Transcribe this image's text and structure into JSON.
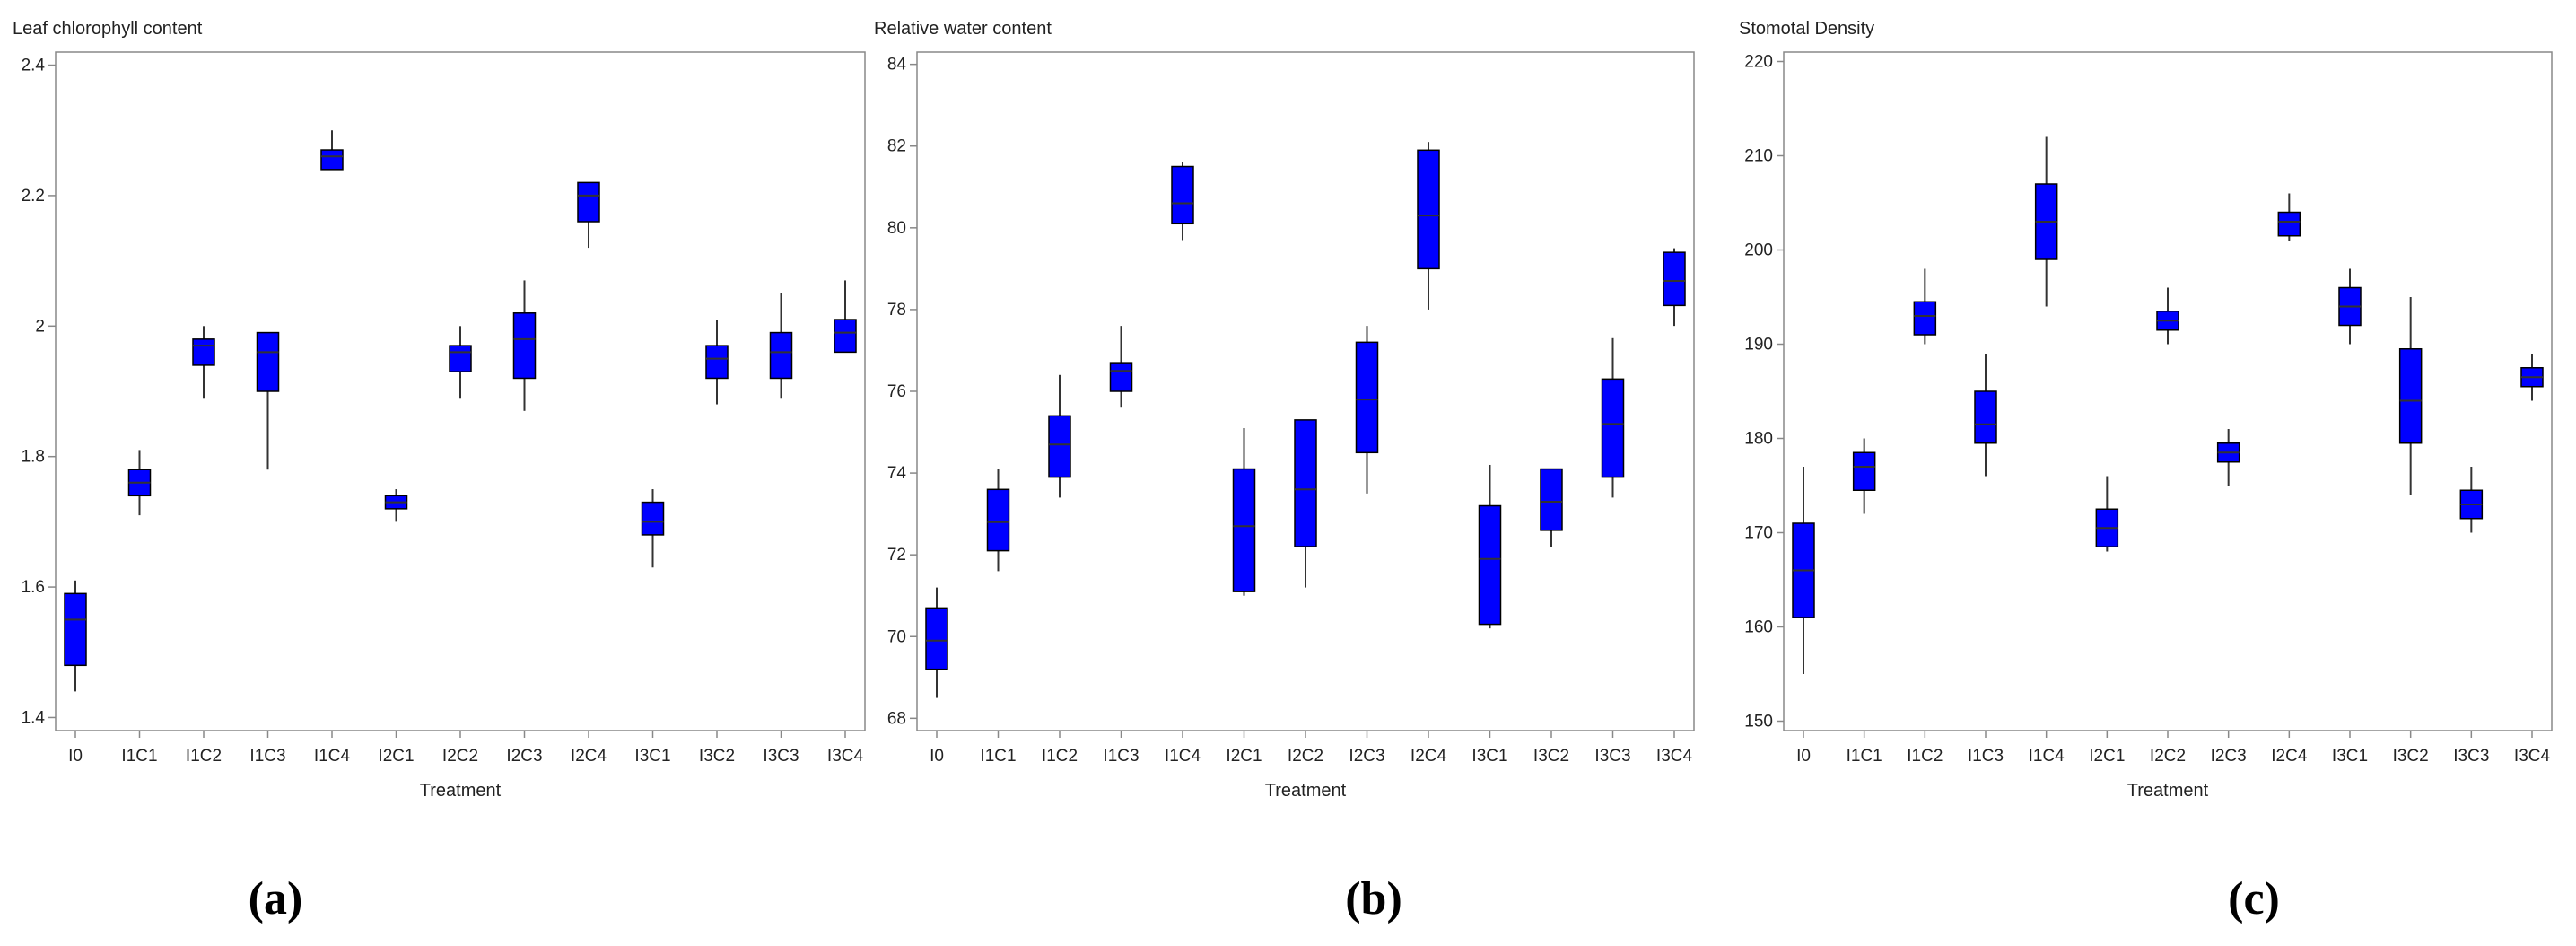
{
  "colors": {
    "box_fill": "#0000ff",
    "box_edge": "#000000",
    "median": "#333333",
    "whisker": "#333333",
    "frame": "#888888",
    "text": "#222222"
  },
  "chart_data": [
    {
      "type": "box",
      "panel_label": "(a)",
      "title": "Leaf chlorophyll content",
      "xlabel": "Treatment",
      "ylabel": "",
      "ylim": [
        1.38,
        2.42
      ],
      "yticks": [
        1.4,
        1.6,
        1.8,
        2.0,
        2.2,
        2.4
      ],
      "ytick_labels": [
        "1.4",
        "1.6",
        "1.8",
        "2",
        "2.2",
        "2.4"
      ],
      "categories": [
        "I0",
        "I1C1",
        "I1C2",
        "I1C3",
        "I1C4",
        "I2C1",
        "I2C2",
        "I2C3",
        "I2C4",
        "I3C1",
        "I3C2",
        "I3C3",
        "I3C4"
      ],
      "boxes": [
        {
          "min": 1.44,
          "q1": 1.48,
          "median": 1.55,
          "q3": 1.59,
          "max": 1.61
        },
        {
          "min": 1.71,
          "q1": 1.74,
          "median": 1.76,
          "q3": 1.78,
          "max": 1.81
        },
        {
          "min": 1.89,
          "q1": 1.94,
          "median": 1.97,
          "q3": 1.98,
          "max": 2.0
        },
        {
          "min": 1.78,
          "q1": 1.9,
          "median": 1.96,
          "q3": 1.99,
          "max": 1.99
        },
        {
          "min": 2.24,
          "q1": 2.24,
          "median": 2.26,
          "q3": 2.27,
          "max": 2.3
        },
        {
          "min": 1.7,
          "q1": 1.72,
          "median": 1.73,
          "q3": 1.74,
          "max": 1.75
        },
        {
          "min": 1.89,
          "q1": 1.93,
          "median": 1.96,
          "q3": 1.97,
          "max": 2.0
        },
        {
          "min": 1.87,
          "q1": 1.92,
          "median": 1.98,
          "q3": 2.02,
          "max": 2.07
        },
        {
          "min": 2.12,
          "q1": 2.16,
          "median": 2.2,
          "q3": 2.22,
          "max": 2.22
        },
        {
          "min": 1.63,
          "q1": 1.68,
          "median": 1.7,
          "q3": 1.73,
          "max": 1.75
        },
        {
          "min": 1.88,
          "q1": 1.92,
          "median": 1.95,
          "q3": 1.97,
          "max": 2.01
        },
        {
          "min": 1.89,
          "q1": 1.92,
          "median": 1.96,
          "q3": 1.99,
          "max": 2.05
        },
        {
          "min": 1.96,
          "q1": 1.96,
          "median": 1.99,
          "q3": 2.01,
          "max": 2.07
        }
      ]
    },
    {
      "type": "box",
      "panel_label": "(b)",
      "title": "Relative water content",
      "xlabel": "Treatment",
      "ylabel": "",
      "ylim": [
        67.7,
        84.3
      ],
      "yticks": [
        68,
        70,
        72,
        74,
        76,
        78,
        80,
        82,
        84
      ],
      "ytick_labels": [
        "68",
        "70",
        "72",
        "74",
        "76",
        "78",
        "80",
        "82",
        "84"
      ],
      "categories": [
        "I0",
        "I1C1",
        "I1C2",
        "I1C3",
        "I1C4",
        "I2C1",
        "I2C2",
        "I2C3",
        "I2C4",
        "I3C1",
        "I3C2",
        "I3C3",
        "I3C4"
      ],
      "boxes": [
        {
          "min": 68.5,
          "q1": 69.2,
          "median": 69.9,
          "q3": 70.7,
          "max": 71.2
        },
        {
          "min": 71.6,
          "q1": 72.1,
          "median": 72.8,
          "q3": 73.6,
          "max": 74.1
        },
        {
          "min": 73.4,
          "q1": 73.9,
          "median": 74.7,
          "q3": 75.4,
          "max": 76.4
        },
        {
          "min": 75.6,
          "q1": 76.0,
          "median": 76.5,
          "q3": 76.7,
          "max": 77.6
        },
        {
          "min": 79.7,
          "q1": 80.1,
          "median": 80.6,
          "q3": 81.5,
          "max": 81.6
        },
        {
          "min": 71.0,
          "q1": 71.1,
          "median": 72.7,
          "q3": 74.1,
          "max": 75.1
        },
        {
          "min": 71.2,
          "q1": 72.2,
          "median": 73.6,
          "q3": 75.3,
          "max": 75.3
        },
        {
          "min": 73.5,
          "q1": 74.5,
          "median": 75.8,
          "q3": 77.2,
          "max": 77.6
        },
        {
          "min": 78.0,
          "q1": 79.0,
          "median": 80.3,
          "q3": 81.9,
          "max": 82.1
        },
        {
          "min": 70.2,
          "q1": 70.3,
          "median": 71.9,
          "q3": 73.2,
          "max": 74.2
        },
        {
          "min": 72.2,
          "q1": 72.6,
          "median": 73.3,
          "q3": 74.1,
          "max": 74.1
        },
        {
          "min": 73.4,
          "q1": 73.9,
          "median": 75.2,
          "q3": 76.3,
          "max": 77.3
        },
        {
          "min": 77.6,
          "q1": 78.1,
          "median": 78.7,
          "q3": 79.4,
          "max": 79.5
        }
      ]
    },
    {
      "type": "box",
      "panel_label": "(c)",
      "title": "Stomotal Density",
      "xlabel": "Treatment",
      "ylabel": "",
      "ylim": [
        149,
        221
      ],
      "yticks": [
        150,
        160,
        170,
        180,
        190,
        200,
        210,
        220
      ],
      "ytick_labels": [
        "150",
        "160",
        "170",
        "180",
        "190",
        "200",
        "210",
        "220"
      ],
      "categories": [
        "I0",
        "I1C1",
        "I1C2",
        "I1C3",
        "I1C4",
        "I2C1",
        "I2C2",
        "I2C3",
        "I2C4",
        "I3C1",
        "I3C2",
        "I3C3",
        "I3C4"
      ],
      "boxes": [
        {
          "min": 155,
          "q1": 161,
          "median": 166,
          "q3": 171,
          "max": 177
        },
        {
          "min": 172,
          "q1": 174.5,
          "median": 177,
          "q3": 178.5,
          "max": 180
        },
        {
          "min": 190,
          "q1": 191,
          "median": 193,
          "q3": 194.5,
          "max": 198
        },
        {
          "min": 176,
          "q1": 179.5,
          "median": 181.5,
          "q3": 185,
          "max": 189
        },
        {
          "min": 194,
          "q1": 199,
          "median": 203,
          "q3": 207,
          "max": 212
        },
        {
          "min": 168,
          "q1": 168.5,
          "median": 170.5,
          "q3": 172.5,
          "max": 176
        },
        {
          "min": 190,
          "q1": 191.5,
          "median": 192.5,
          "q3": 193.5,
          "max": 196
        },
        {
          "min": 175,
          "q1": 177.5,
          "median": 178.5,
          "q3": 179.5,
          "max": 181
        },
        {
          "min": 201,
          "q1": 201.5,
          "median": 203,
          "q3": 204,
          "max": 206
        },
        {
          "min": 190,
          "q1": 192,
          "median": 194,
          "q3": 196,
          "max": 198
        },
        {
          "min": 174,
          "q1": 179.5,
          "median": 184,
          "q3": 189.5,
          "max": 195
        },
        {
          "min": 170,
          "q1": 171.5,
          "median": 173,
          "q3": 174.5,
          "max": 177
        },
        {
          "min": 184,
          "q1": 185.5,
          "median": 186.5,
          "q3": 187.5,
          "max": 189
        }
      ]
    }
  ]
}
